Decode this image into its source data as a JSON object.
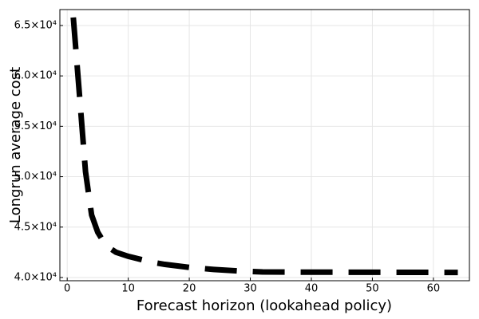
{
  "chart_data": {
    "type": "line",
    "x_label": "Forecast horizon (lookahead policy)",
    "y_label": "Longrun average cost",
    "x": [
      1,
      2,
      3,
      4,
      5,
      6,
      7,
      8,
      10,
      12,
      14,
      16,
      20,
      24,
      28,
      32,
      40,
      48,
      56,
      64
    ],
    "series": [
      {
        "color": "#000000",
        "values": [
          65800,
          58200,
          50500,
          46200,
          44500,
          43500,
          42900,
          42500,
          42100,
          41800,
          41500,
          41300,
          41000,
          40800,
          40650,
          40550,
          40530,
          40520,
          40510,
          40500
        ]
      }
    ],
    "xlim": [
      -1.2,
      65.9
    ],
    "xticks": [
      0,
      10,
      20,
      30,
      40,
      50,
      60
    ],
    "ylim": [
      39680,
      66580
    ],
    "yticks": [
      {
        "value": 40000,
        "label": "4.0×10⁴"
      },
      {
        "value": 45000,
        "label": "4.5×10⁴"
      },
      {
        "value": 50000,
        "label": "5.0×10⁴"
      },
      {
        "value": 55000,
        "label": "5.5×10⁴"
      },
      {
        "value": 60000,
        "label": "6.0×10⁴"
      },
      {
        "value": 65000,
        "label": "6.5×10⁴"
      }
    ],
    "grid": true
  }
}
